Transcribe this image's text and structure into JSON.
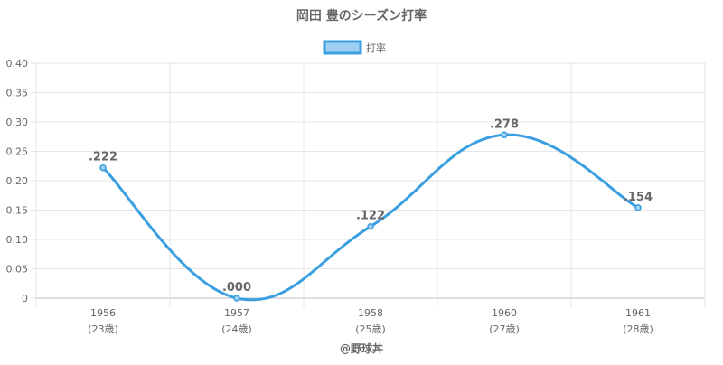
{
  "chart_data": {
    "type": "line",
    "title": "岡田 豊のシーズン打率",
    "legend": {
      "position": "top",
      "label": "打率"
    },
    "x": [
      "1956",
      "1957",
      "1958",
      "1960",
      "1961"
    ],
    "x_sublabels": [
      "(23歳)",
      "(24歳)",
      "(25歳)",
      "(27歳)",
      "(28歳)"
    ],
    "series": [
      {
        "name": "打率",
        "values": [
          0.222,
          0.0,
          0.122,
          0.278,
          0.154
        ]
      }
    ],
    "data_labels": [
      ".222",
      ".000",
      ".122",
      ".278",
      ".154"
    ],
    "ylim": [
      0,
      0.4
    ],
    "yticks": [
      "0",
      "0.05",
      "0.10",
      "0.15",
      "0.20",
      "0.25",
      "0.30",
      "0.35",
      "0.40"
    ],
    "grid": true,
    "line_color": "#3a9fe0",
    "fill_color": "#9fcff2",
    "footer": "@野球丼"
  }
}
